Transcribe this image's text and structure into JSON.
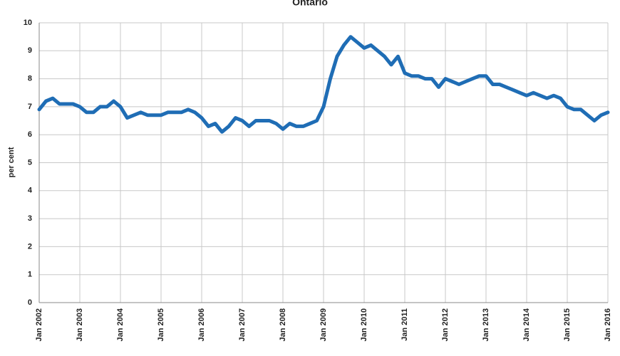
{
  "chart_data": {
    "type": "line",
    "title": "Ontario",
    "y_label": "per cent",
    "categories": [
      "Jan 2002",
      null,
      null,
      null,
      null,
      null,
      "Jan 2003",
      null,
      null,
      null,
      null,
      null,
      "Jan 2004",
      null,
      null,
      null,
      null,
      null,
      "Jan 2005",
      null,
      null,
      null,
      null,
      null,
      "Jan 2006",
      null,
      null,
      null,
      null,
      null,
      "Jan 2007",
      null,
      null,
      null,
      null,
      null,
      "Jan 2008",
      null,
      null,
      null,
      null,
      null,
      "Jan 2009",
      null,
      null,
      null,
      null,
      null,
      "Jan 2010",
      null,
      null,
      null,
      null,
      null,
      "Jan 2011",
      null,
      null,
      null,
      null,
      null,
      "Jan 2012",
      null,
      null,
      null,
      null,
      null,
      "Jan 2013",
      null,
      null,
      null,
      null,
      null,
      "Jan 2014",
      null,
      null,
      null,
      null,
      null,
      "Jan 2015",
      null,
      null,
      null,
      null,
      null,
      "Jan 2016"
    ],
    "values": [
      6.9,
      7.2,
      7.3,
      7.1,
      7.1,
      7.1,
      7.0,
      6.8,
      6.8,
      7.0,
      7.0,
      7.2,
      7.0,
      6.6,
      6.7,
      6.8,
      6.7,
      6.7,
      6.7,
      6.8,
      6.8,
      6.8,
      6.9,
      6.8,
      6.6,
      6.3,
      6.4,
      6.1,
      6.3,
      6.6,
      6.5,
      6.3,
      6.5,
      6.5,
      6.5,
      6.4,
      6.2,
      6.4,
      6.3,
      6.3,
      6.4,
      6.5,
      7.0,
      8.0,
      8.8,
      9.2,
      9.5,
      9.3,
      9.1,
      9.2,
      9.0,
      8.8,
      8.5,
      8.8,
      8.2,
      8.1,
      8.1,
      8.0,
      8.0,
      7.7,
      8.0,
      7.9,
      7.8,
      7.9,
      8.0,
      8.1,
      8.1,
      7.8,
      7.8,
      7.7,
      7.6,
      7.5,
      7.4,
      7.5,
      7.4,
      7.3,
      7.4,
      7.3,
      7.0,
      6.9,
      6.9,
      6.7,
      6.5,
      6.7,
      6.8
    ],
    "color": "#1f6db5",
    "ylim": [
      0,
      10
    ],
    "yticks": [
      0,
      1,
      2,
      3,
      4,
      5,
      6,
      7,
      8,
      9,
      10
    ],
    "grid": true
  }
}
